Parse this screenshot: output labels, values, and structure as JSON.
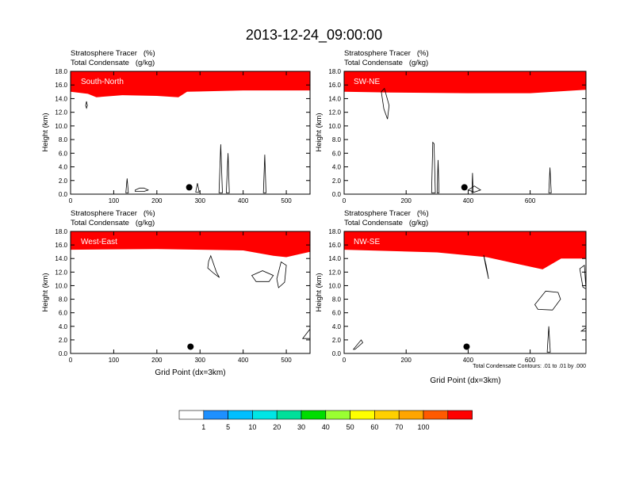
{
  "title": "2013-12-24_09:00:00",
  "footnote": "Total Condensate Contours: .01 to .01 by .000",
  "colors": {
    "bins": [
      "#ffffff",
      "#1e90ff",
      "#00bfff",
      "#00e5e5",
      "#00e09a",
      "#00dd00",
      "#9aff32",
      "#ffff00",
      "#ffd000",
      "#ffa500",
      "#ff5a00",
      "#ff0000"
    ],
    "contour": "#000000"
  },
  "colorbar": {
    "labels": [
      "1",
      "5",
      "10",
      "20",
      "30",
      "40",
      "50",
      "60",
      "70",
      "100"
    ]
  },
  "chart_data": [
    {
      "type": "heatmap",
      "panel": "South-North",
      "variables": [
        "Stratosphere Tracer   (%)",
        "Total Condensate   (g/kg)"
      ],
      "xlabel": "",
      "ylabel": "Height (km)",
      "xlim": [
        0,
        555
      ],
      "ylim": [
        0,
        18
      ],
      "xticks": [
        0,
        100,
        200,
        300,
        400,
        500
      ],
      "yticks": [
        "0.0",
        "2.0",
        "4.0",
        "6.0",
        "8.0",
        "10.0",
        "12.0",
        "14.0",
        "16.0",
        "18.0"
      ],
      "tracer_profile": [
        {
          "x": 0,
          "top": 16.0,
          "base": 15.0
        },
        {
          "x": 40,
          "top": 16.0,
          "base": 14.7
        },
        {
          "x": 60,
          "top": 15.6,
          "base": 14.2
        },
        {
          "x": 120,
          "top": 15.6,
          "base": 14.5
        },
        {
          "x": 200,
          "top": 15.6,
          "base": 14.4
        },
        {
          "x": 250,
          "top": 15.5,
          "base": 14.2
        },
        {
          "x": 270,
          "top": 15.8,
          "base": 15.0
        },
        {
          "x": 400,
          "top": 16.0,
          "base": 15.2
        },
        {
          "x": 555,
          "top": 16.0,
          "base": 15.2
        }
      ],
      "contours": [
        {
          "x": [
            344,
            348,
            352,
            348
          ],
          "y": [
            0.2,
            7.3,
            0.2,
            0.2
          ]
        },
        {
          "x": [
            361,
            365,
            368,
            365
          ],
          "y": [
            0.2,
            6.0,
            0.2,
            0.2
          ]
        },
        {
          "x": [
            447,
            450,
            453,
            450
          ],
          "y": [
            0.2,
            5.8,
            0.2,
            0.2
          ]
        },
        {
          "x": [
            128,
            131,
            134,
            131
          ],
          "y": [
            0.2,
            2.3,
            0.2,
            0.2
          ]
        },
        {
          "x": [
            150,
            160,
            170,
            180,
            170,
            150
          ],
          "y": [
            0.6,
            0.9,
            0.9,
            0.6,
            0.4,
            0.4
          ]
        },
        {
          "x": [
            290,
            294,
            298,
            294
          ],
          "y": [
            0.3,
            1.6,
            0.3,
            0.3
          ]
        },
        {
          "x": [
            35,
            37,
            39,
            37
          ],
          "y": [
            13.0,
            13.6,
            13.0,
            12.6
          ]
        }
      ],
      "dot": {
        "x": 275,
        "y": 1.0
      }
    },
    {
      "type": "heatmap",
      "panel": "SW-NE",
      "variables": [
        "Stratosphere Tracer   (%)",
        "Total Condensate   (g/kg)"
      ],
      "xlabel": "",
      "ylabel": "Height (km)",
      "xlim": [
        0,
        780
      ],
      "ylim": [
        0,
        18
      ],
      "xticks": [
        0,
        200,
        400,
        600
      ],
      "yticks": [
        "0.0",
        "2.0",
        "4.0",
        "6.0",
        "8.0",
        "10.0",
        "12.0",
        "14.0",
        "16.0",
        "18.0"
      ],
      "tracer_profile": [
        {
          "x": 0,
          "top": 16.0,
          "base": 15.0
        },
        {
          "x": 150,
          "top": 16.0,
          "base": 14.9
        },
        {
          "x": 400,
          "top": 15.8,
          "base": 14.8
        },
        {
          "x": 600,
          "top": 15.8,
          "base": 14.8
        },
        {
          "x": 780,
          "top": 16.0,
          "base": 15.3
        }
      ],
      "contours": [
        {
          "x": [
            120,
            130,
            145,
            140,
            128
          ],
          "y": [
            15.0,
            15.5,
            13.0,
            11.0,
            12.5
          ]
        },
        {
          "x": [
            282,
            286,
            290,
            294,
            288
          ],
          "y": [
            0.2,
            7.6,
            7.4,
            0.2,
            0.2
          ]
        },
        {
          "x": [
            300,
            303,
            306,
            303
          ],
          "y": [
            0.2,
            5.0,
            0.2,
            0.2
          ]
        },
        {
          "x": [
            412,
            414,
            416,
            414
          ],
          "y": [
            0.2,
            3.1,
            0.2,
            0.2
          ]
        },
        {
          "x": [
            660,
            664,
            668,
            664
          ],
          "y": [
            0.2,
            3.9,
            0.2,
            0.2
          ]
        },
        {
          "x": [
            400,
            420,
            440,
            420
          ],
          "y": [
            0.6,
            1.2,
            0.6,
            0.3
          ]
        }
      ],
      "dot": {
        "x": 388,
        "y": 1.0
      }
    },
    {
      "type": "heatmap",
      "panel": "West-East",
      "variables": [
        "Stratosphere Tracer   (%)",
        "Total Condensate   (g/kg)"
      ],
      "xlabel": "Grid Point (dx=3km)",
      "ylabel": "Height (km)",
      "xlim": [
        0,
        555
      ],
      "ylim": [
        0,
        18
      ],
      "xticks": [
        0,
        100,
        200,
        300,
        400,
        500
      ],
      "yticks": [
        "0.0",
        "2.0",
        "4.0",
        "6.0",
        "8.0",
        "10.0",
        "12.0",
        "14.0",
        "16.0",
        "18.0"
      ],
      "tracer_profile": [
        {
          "x": 0,
          "top": 16.0,
          "base": 15.3
        },
        {
          "x": 200,
          "top": 16.0,
          "base": 15.4
        },
        {
          "x": 400,
          "top": 16.0,
          "base": 15.2
        },
        {
          "x": 470,
          "top": 15.4,
          "base": 14.4
        },
        {
          "x": 500,
          "top": 15.6,
          "base": 14.2
        },
        {
          "x": 555,
          "top": 16.0,
          "base": 15.0
        }
      ],
      "contours": [
        {
          "x": [
            320,
            325,
            338,
            345,
            332,
            318
          ],
          "y": [
            13.6,
            14.4,
            12.0,
            11.2,
            11.8,
            12.6
          ]
        },
        {
          "x": [
            420,
            445,
            470,
            460,
            430
          ],
          "y": [
            11.5,
            12.2,
            11.5,
            10.6,
            10.6
          ]
        },
        {
          "x": [
            478,
            488,
            500,
            496,
            482
          ],
          "y": [
            11.0,
            13.5,
            13.0,
            10.5,
            9.7
          ]
        },
        {
          "x": [
            538,
            555,
            555,
            538
          ],
          "y": [
            2.2,
            3.6,
            2.2,
            2.2
          ]
        }
      ],
      "dot": {
        "x": 278,
        "y": 1.0
      }
    },
    {
      "type": "heatmap",
      "panel": "NW-SE",
      "variables": [
        "Stratosphere Tracer   (%)",
        "Total Condensate   (g/kg)"
      ],
      "xlabel": "Grid Point (dx=3km)",
      "ylabel": "Height (km)",
      "xlim": [
        0,
        780
      ],
      "ylim": [
        0,
        18
      ],
      "xticks": [
        0,
        200,
        400,
        600
      ],
      "yticks": [
        "0.0",
        "2.0",
        "4.0",
        "6.0",
        "8.0",
        "10.0",
        "12.0",
        "14.0",
        "16.0",
        "18.0"
      ],
      "tracer_profile": [
        {
          "x": 0,
          "top": 16.2,
          "base": 15.3
        },
        {
          "x": 300,
          "top": 16.0,
          "base": 14.9
        },
        {
          "x": 460,
          "top": 15.4,
          "base": 14.2
        },
        {
          "x": 560,
          "top": 14.6,
          "base": 13.2
        },
        {
          "x": 640,
          "top": 14.8,
          "base": 12.4
        },
        {
          "x": 700,
          "top": 15.4,
          "base": 14.0
        },
        {
          "x": 780,
          "top": 15.6,
          "base": 14.0
        }
      ],
      "contours": [
        {
          "x": [
            450,
            458,
            466,
            458
          ],
          "y": [
            14.5,
            12.6,
            11.0,
            13.0
          ]
        },
        {
          "x": [
            615,
            650,
            690,
            698,
            672,
            625
          ],
          "y": [
            7.2,
            9.2,
            9.0,
            8.0,
            6.4,
            6.5
          ]
        },
        {
          "x": [
            760,
            775,
            780,
            770
          ],
          "y": [
            12.5,
            13.0,
            9.5,
            9.8
          ]
        },
        {
          "x": [
            655,
            660,
            665,
            660
          ],
          "y": [
            0.2,
            4.0,
            0.2,
            0.2
          ]
        },
        {
          "x": [
            765,
            780,
            780,
            765
          ],
          "y": [
            3.3,
            3.8,
            3.3,
            3.3
          ]
        },
        {
          "x": [
            30,
            55,
            60,
            35
          ],
          "y": [
            0.6,
            2.0,
            1.6,
            0.6
          ]
        }
      ],
      "dot": {
        "x": 395,
        "y": 1.0
      }
    }
  ]
}
